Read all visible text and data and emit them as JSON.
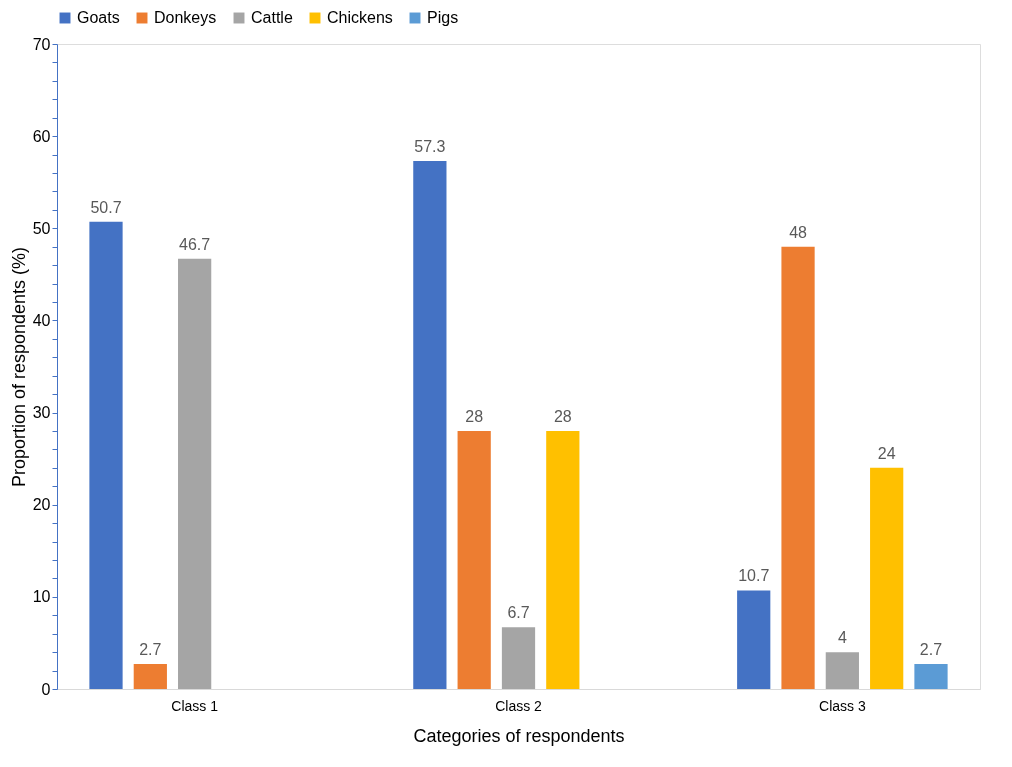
{
  "chart_data": {
    "type": "bar",
    "xlabel": "Categories of respondents",
    "ylabel": "Proportion of respondents (%)",
    "categories": [
      "Class 1",
      "Class 2",
      "Class 3"
    ],
    "series": [
      {
        "name": "Goats",
        "color": "#4472c4",
        "values": [
          50.7,
          57.3,
          10.7
        ]
      },
      {
        "name": "Donkeys",
        "color": "#ed7d31",
        "values": [
          2.7,
          28,
          48
        ]
      },
      {
        "name": "Cattle",
        "color": "#a5a5a5",
        "values": [
          46.7,
          6.7,
          4
        ]
      },
      {
        "name": "Chickens",
        "color": "#ffc000",
        "values": [
          null,
          28,
          24
        ]
      },
      {
        "name": "Pigs",
        "color": "#5b9bd5",
        "values": [
          null,
          null,
          2.7
        ]
      }
    ],
    "ylim": [
      0,
      70
    ],
    "yticks": [
      0,
      {
        "value": 2,
        "label": null
      },
      {
        "value": 4,
        "label": null
      },
      {
        "value": 6,
        "label": null
      },
      {
        "value": 8,
        "label": null
      },
      10,
      {
        "value": 12,
        "label": null
      },
      {
        "value": 14,
        "label": null
      },
      {
        "value": 16,
        "label": null
      },
      {
        "value": 18,
        "label": null
      },
      20,
      {
        "value": 22,
        "label": null
      },
      {
        "value": 24,
        "label": null
      },
      {
        "value": 26,
        "label": null
      },
      {
        "value": 28,
        "label": null
      },
      30,
      {
        "value": 32,
        "label": null
      },
      {
        "value": 34,
        "label": null
      },
      {
        "value": 36,
        "label": null
      },
      {
        "value": 38,
        "label": null
      },
      40,
      {
        "value": 42,
        "label": null
      },
      {
        "value": 44,
        "label": null
      },
      {
        "value": 46,
        "label": null
      },
      {
        "value": 48,
        "label": null
      },
      50,
      {
        "value": 52,
        "label": null
      },
      {
        "value": 54,
        "label": null
      },
      {
        "value": 56,
        "label": null
      },
      {
        "value": 58,
        "label": null
      },
      60,
      {
        "value": 62,
        "label": null
      },
      {
        "value": 64,
        "label": null
      },
      {
        "value": 66,
        "label": null
      },
      {
        "value": 68,
        "label": null
      },
      70
    ],
    "data_labels": true,
    "grid": false,
    "legend": "top"
  }
}
